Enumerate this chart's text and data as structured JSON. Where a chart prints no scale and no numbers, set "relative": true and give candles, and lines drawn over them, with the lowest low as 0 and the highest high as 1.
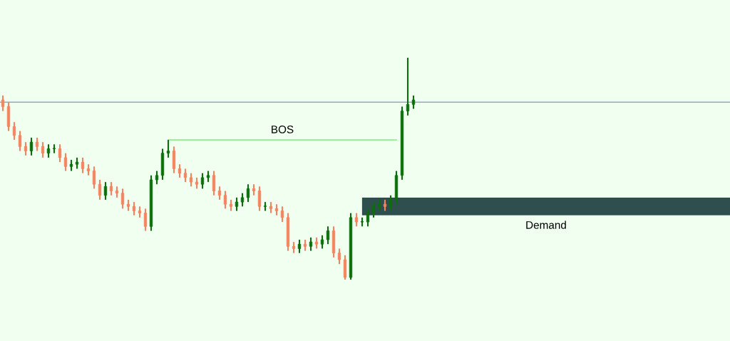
{
  "chart_data": {
    "type": "candlestick",
    "relative": true,
    "categories": [
      null,
      null,
      null,
      null,
      null,
      null,
      null,
      null,
      null,
      null,
      null,
      null,
      null,
      null,
      null,
      null,
      null,
      null,
      null,
      null,
      null,
      null,
      null,
      null,
      null,
      null,
      null,
      null,
      null,
      null,
      null,
      null,
      null,
      null,
      null,
      null,
      null,
      null,
      null,
      null,
      null,
      null,
      null,
      null,
      null,
      null,
      null,
      null,
      null,
      null,
      null,
      null,
      null,
      null,
      null,
      null,
      null,
      null,
      null,
      null,
      null,
      null,
      null,
      null,
      null,
      null,
      null,
      null,
      null,
      null,
      null,
      null,
      null
    ],
    "ohlc": [
      [
        0.81,
        0.83,
        0.76,
        0.78
      ],
      [
        0.78,
        0.8,
        0.67,
        0.69
      ],
      [
        0.69,
        0.71,
        0.63,
        0.65
      ],
      [
        0.65,
        0.67,
        0.58,
        0.6
      ],
      [
        0.6,
        0.62,
        0.56,
        0.58
      ],
      [
        0.58,
        0.64,
        0.56,
        0.62
      ],
      [
        0.62,
        0.64,
        0.58,
        0.6
      ],
      [
        0.6,
        0.62,
        0.55,
        0.57
      ],
      [
        0.57,
        0.61,
        0.55,
        0.59
      ],
      [
        0.59,
        0.61,
        0.57,
        0.59
      ],
      [
        0.59,
        0.61,
        0.53,
        0.55
      ],
      [
        0.55,
        0.57,
        0.49,
        0.51
      ],
      [
        0.51,
        0.54,
        0.49,
        0.52
      ],
      [
        0.52,
        0.55,
        0.5,
        0.53
      ],
      [
        0.53,
        0.55,
        0.48,
        0.5
      ],
      [
        0.5,
        0.52,
        0.47,
        0.49
      ],
      [
        0.49,
        0.51,
        0.41,
        0.43
      ],
      [
        0.43,
        0.45,
        0.36,
        0.38
      ],
      [
        0.38,
        0.44,
        0.36,
        0.42
      ],
      [
        0.42,
        0.44,
        0.38,
        0.4
      ],
      [
        0.4,
        0.42,
        0.37,
        0.39
      ],
      [
        0.39,
        0.41,
        0.32,
        0.34
      ],
      [
        0.34,
        0.36,
        0.31,
        0.33
      ],
      [
        0.33,
        0.35,
        0.29,
        0.31
      ],
      [
        0.31,
        0.33,
        0.28,
        0.3
      ],
      [
        0.3,
        0.32,
        0.22,
        0.24
      ],
      [
        0.24,
        0.47,
        0.22,
        0.45
      ],
      [
        0.45,
        0.49,
        0.43,
        0.47
      ],
      [
        0.47,
        0.59,
        0.45,
        0.57
      ],
      [
        0.57,
        0.63,
        0.55,
        0.58
      ],
      [
        0.58,
        0.6,
        0.48,
        0.5
      ],
      [
        0.5,
        0.52,
        0.46,
        0.48
      ],
      [
        0.48,
        0.5,
        0.44,
        0.46
      ],
      [
        0.46,
        0.48,
        0.42,
        0.44
      ],
      [
        0.44,
        0.46,
        0.41,
        0.43
      ],
      [
        0.43,
        0.48,
        0.41,
        0.46
      ],
      [
        0.46,
        0.49,
        0.44,
        0.47
      ],
      [
        0.47,
        0.49,
        0.38,
        0.4
      ],
      [
        0.4,
        0.42,
        0.36,
        0.38
      ],
      [
        0.38,
        0.4,
        0.32,
        0.34
      ],
      [
        0.34,
        0.36,
        0.31,
        0.33
      ],
      [
        0.33,
        0.37,
        0.31,
        0.35
      ],
      [
        0.35,
        0.39,
        0.33,
        0.37
      ],
      [
        0.37,
        0.43,
        0.35,
        0.41
      ],
      [
        0.41,
        0.43,
        0.38,
        0.4
      ],
      [
        0.4,
        0.42,
        0.31,
        0.33
      ],
      [
        0.33,
        0.35,
        0.31,
        0.33
      ],
      [
        0.33,
        0.35,
        0.3,
        0.32
      ],
      [
        0.32,
        0.34,
        0.29,
        0.31
      ],
      [
        0.31,
        0.33,
        0.26,
        0.28
      ],
      [
        0.28,
        0.3,
        0.13,
        0.15
      ],
      [
        0.15,
        0.17,
        0.12,
        0.14
      ],
      [
        0.14,
        0.18,
        0.12,
        0.16
      ],
      [
        0.16,
        0.18,
        0.13,
        0.15
      ],
      [
        0.15,
        0.19,
        0.13,
        0.17
      ],
      [
        0.17,
        0.19,
        0.14,
        0.16
      ],
      [
        0.16,
        0.2,
        0.14,
        0.18
      ],
      [
        0.18,
        0.24,
        0.16,
        0.22
      ],
      [
        0.22,
        0.24,
        0.1,
        0.12
      ],
      [
        0.12,
        0.14,
        0.07,
        0.09
      ],
      [
        0.09,
        0.11,
        0,
        0.01
      ],
      [
        0.01,
        0.3,
        0,
        0.28
      ],
      [
        0.28,
        0.3,
        0.24,
        0.26
      ],
      [
        0.26,
        0.28,
        0.24,
        0.26
      ],
      [
        0.26,
        0.32,
        0.24,
        0.3
      ],
      [
        0.3,
        0.35,
        0.28,
        0.33
      ],
      [
        0.33,
        0.36,
        0.31,
        0.34
      ],
      [
        0.34,
        0.36,
        0.31,
        0.33
      ],
      [
        0.33,
        0.38,
        0.31,
        0.36
      ],
      [
        0.36,
        0.49,
        0.34,
        0.47
      ],
      [
        0.47,
        0.78,
        0.45,
        0.76
      ],
      [
        0.76,
        1,
        0.74,
        0.79
      ],
      [
        0.79,
        0.83,
        0.77,
        0.81
      ]
    ],
    "series": [
      {
        "name": "BOS",
        "type": "line",
        "color": "#90ee90",
        "values": [
          null,
          null,
          null,
          null,
          null,
          null,
          null,
          null,
          null,
          null,
          null,
          null,
          null,
          null,
          null,
          null,
          null,
          null,
          null,
          null,
          null,
          null,
          null,
          null,
          null,
          null,
          null,
          null,
          null,
          0.63,
          0.63,
          0.63,
          0.63,
          0.63,
          0.63,
          0.63,
          0.63,
          0.63,
          0.63,
          0.63,
          0.63,
          0.63,
          0.63,
          0.63,
          0.63,
          0.63,
          0.63,
          0.63,
          0.63,
          0.63,
          0.63,
          0.63,
          0.63,
          0.63,
          0.63,
          0.63,
          0.63,
          0.63,
          0.63,
          0.63,
          0.63,
          0.63,
          0.63,
          0.63,
          0.63,
          0.63,
          0.63,
          0.63,
          0.63,
          0.63,
          null,
          null,
          null
        ]
      }
    ],
    "ref_lines": [
      {
        "axis": "y",
        "value": 0.8,
        "color": "#9aa6c0"
      }
    ],
    "bands": [
      {
        "axis": "y",
        "from": 0.29,
        "to": 0.37,
        "label": "Demand",
        "color": "#2f4f4f"
      }
    ],
    "legend": false
  }
}
